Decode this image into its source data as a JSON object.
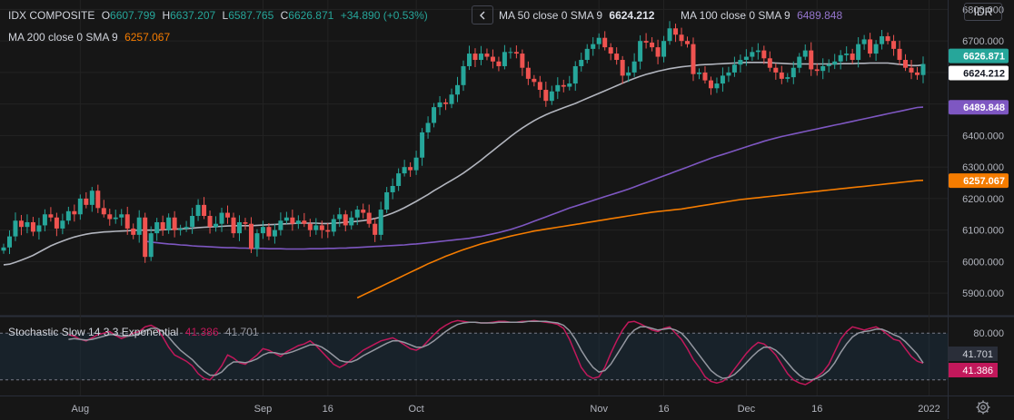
{
  "header": {
    "symbol": "IDX COMPOSITE",
    "o_label": "O",
    "o_value": "6607.799",
    "h_label": "H",
    "h_value": "6637.207",
    "l_label": "L",
    "l_value": "6587.765",
    "c_label": "C",
    "c_value": "6626.871",
    "change": "+34.890 (+0.53%)",
    "ma50_label": "MA 50 close 0 SMA 9",
    "ma50_value": "6624.212",
    "ma100_label": "MA 100 close 0 SMA 9",
    "ma100_value": "6489.848",
    "ma200_label": "MA 200 close 0 SMA 9",
    "ma200_value": "6257.067",
    "currency": "IDR",
    "collapse_icon": "chevron-left-icon"
  },
  "stoch_legend": {
    "label": "Stochastic Slow 14 3 3 Exponential",
    "k": "41.386",
    "d": "41.701"
  },
  "colors": {
    "up": "#26a69a",
    "down": "#ef5350",
    "ma50": "#b2b5be",
    "ma100": "#7e57c2",
    "ma200": "#f57c00",
    "stoch_k": "#c2185b",
    "stoch_d": "#9598a1",
    "band": "#1e3a4f"
  },
  "chart_data": [
    {
      "type": "candlestick",
      "title": "IDX COMPOSITE",
      "y_ticks": [
        "5900.000",
        "6000.000",
        "6100.000",
        "6200.000",
        "6300.000",
        "6400.000",
        "6500.000",
        "6600.000",
        "6700.000",
        "6800.000"
      ],
      "ylim": [
        5840,
        6830
      ],
      "x_ticks": [
        {
          "label": "Aug",
          "index": 13
        },
        {
          "label": "Sep",
          "index": 44
        },
        {
          "label": "16",
          "index": 55
        },
        {
          "label": "Oct",
          "index": 70
        },
        {
          "label": "Nov",
          "index": 101
        },
        {
          "label": "16",
          "index": 112
        },
        {
          "label": "Dec",
          "index": 126
        },
        {
          "label": "16",
          "index": 138
        },
        {
          "label": "2022",
          "index": 157
        }
      ],
      "price_labels": [
        {
          "value": "6626.871",
          "kind": "last"
        },
        {
          "value": "6624.212",
          "kind": "ma50"
        },
        {
          "value": "6489.848",
          "kind": "ma100"
        },
        {
          "value": "6257.067",
          "kind": "ma200"
        }
      ],
      "closes": [
        6045,
        6080,
        6130,
        6110,
        6125,
        6095,
        6115,
        6150,
        6140,
        6105,
        6130,
        6160,
        6150,
        6200,
        6180,
        6225,
        6170,
        6150,
        6135,
        6140,
        6150,
        6105,
        6085,
        6140,
        6015,
        6090,
        6125,
        6100,
        6140,
        6100,
        6105,
        6110,
        6145,
        6180,
        6145,
        6110,
        6120,
        6155,
        6140,
        6090,
        6125,
        6120,
        6040,
        6090,
        6110,
        6080,
        6100,
        6130,
        6140,
        6120,
        6130,
        6120,
        6100,
        6115,
        6100,
        6095,
        6135,
        6150,
        6115,
        6140,
        6165,
        6155,
        6120,
        6085,
        6165,
        6220,
        6240,
        6280,
        6300,
        6290,
        6330,
        6410,
        6440,
        6490,
        6505,
        6500,
        6530,
        6560,
        6620,
        6660,
        6640,
        6660,
        6650,
        6635,
        6620,
        6665,
        6665,
        6660,
        6615,
        6580,
        6570,
        6545,
        6510,
        6540,
        6560,
        6555,
        6565,
        6620,
        6640,
        6675,
        6690,
        6710,
        6680,
        6660,
        6640,
        6590,
        6600,
        6635,
        6700,
        6695,
        6680,
        6650,
        6700,
        6740,
        6720,
        6700,
        6690,
        6595,
        6600,
        6575,
        6550,
        6565,
        6590,
        6600,
        6625,
        6640,
        6650,
        6665,
        6670,
        6645,
        6615,
        6600,
        6580,
        6585,
        6615,
        6650,
        6670,
        6610,
        6605,
        6620,
        6625,
        6635,
        6655,
        6660,
        6640,
        6690,
        6705,
        6660,
        6690,
        6715,
        6700,
        6675,
        6640,
        6615,
        6600,
        6592,
        6627
      ],
      "ma50": [
        5990,
        5992,
        5998,
        6005,
        6012,
        6020,
        6030,
        6040,
        6050,
        6058,
        6065,
        6072,
        6078,
        6083,
        6087,
        6090,
        6092,
        6094,
        6095,
        6096,
        6097,
        6098,
        6099,
        6100,
        6100,
        6100,
        6100,
        6101,
        6102,
        6103,
        6104,
        6105,
        6106,
        6108,
        6109,
        6110,
        6111,
        6112,
        6113,
        6114,
        6114,
        6114,
        6114,
        6115,
        6116,
        6117,
        6118,
        6119,
        6120,
        6121,
        6122,
        6122,
        6122,
        6122,
        6121,
        6121,
        6122,
        6123,
        6125,
        6126,
        6128,
        6130,
        6133,
        6137,
        6141,
        6147,
        6154,
        6162,
        6171,
        6181,
        6191,
        6202,
        6213,
        6225,
        6236,
        6247,
        6258,
        6269,
        6281,
        6294,
        6308,
        6322,
        6337,
        6352,
        6367,
        6382,
        6397,
        6411,
        6424,
        6436,
        6447,
        6457,
        6466,
        6474,
        6481,
        6488,
        6495,
        6502,
        6510,
        6518,
        6526,
        6534,
        6542,
        6550,
        6558,
        6566,
        6574,
        6581,
        6588,
        6594,
        6599,
        6604,
        6608,
        6612,
        6615,
        6618,
        6620,
        6622,
        6624,
        6625,
        6626,
        6627,
        6628,
        6629,
        6630,
        6631,
        6632,
        6632,
        6632,
        6632,
        6631,
        6630,
        6629,
        6628,
        6627,
        6627,
        6627,
        6627,
        6627,
        6627,
        6627,
        6627,
        6628,
        6628,
        6628,
        6629,
        6629,
        6630,
        6630,
        6630,
        6630,
        6628,
        6626,
        6624,
        6622,
        6622,
        6624
      ],
      "ma100": [
        6065,
        6062,
        6060,
        6058,
        6056,
        6055,
        6053,
        6052,
        6050,
        6049,
        6048,
        6047,
        6046,
        6045,
        6044,
        6044,
        6043,
        6043,
        6042,
        6042,
        6042,
        6041,
        6041,
        6041,
        6040,
        6040,
        6040,
        6040,
        6041,
        6041,
        6041,
        6042,
        6042,
        6043,
        6043,
        6044,
        6045,
        6046,
        6047,
        6048,
        6049,
        6050,
        6051,
        6052,
        6053,
        6055,
        6056,
        6058,
        6060,
        6062,
        6064,
        6066,
        6068,
        6070,
        6072,
        6074,
        6077,
        6080,
        6084,
        6088,
        6092,
        6097,
        6102,
        6108,
        6114,
        6121,
        6128,
        6135,
        6142,
        6149,
        6156,
        6163,
        6170,
        6176,
        6182,
        6188,
        6194,
        6200,
        6206,
        6212,
        6218,
        6224,
        6230,
        6237,
        6244,
        6251,
        6258,
        6265,
        6272,
        6279,
        6286,
        6293,
        6300,
        6307,
        6314,
        6321,
        6328,
        6334,
        6340,
        6346,
        6352,
        6358,
        6364,
        6370,
        6376,
        6382,
        6387,
        6392,
        6397,
        6401,
        6405,
        6409,
        6413,
        6417,
        6421,
        6425,
        6429,
        6433,
        6437,
        6441,
        6445,
        6449,
        6453,
        6457,
        6461,
        6465,
        6469,
        6473,
        6477,
        6481,
        6485,
        6489,
        6490
      ],
      "ma200": [
        5885,
        5894,
        5903,
        5912,
        5921,
        5930,
        5939,
        5948,
        5957,
        5966,
        5975,
        5984,
        5993,
        6001,
        6009,
        6017,
        6024,
        6031,
        6038,
        6044,
        6050,
        6056,
        6061,
        6066,
        6071,
        6076,
        6081,
        6085,
        6089,
        6093,
        6097,
        6100,
        6103,
        6106,
        6109,
        6112,
        6115,
        6118,
        6121,
        6124,
        6127,
        6130,
        6133,
        6136,
        6139,
        6142,
        6145,
        6148,
        6151,
        6154,
        6157,
        6159,
        6161,
        6163,
        6165,
        6167,
        6170,
        6173,
        6176,
        6179,
        6182,
        6185,
        6188,
        6191,
        6194,
        6197,
        6199,
        6201,
        6203,
        6205,
        6207,
        6209,
        6211,
        6213,
        6215,
        6217,
        6219,
        6221,
        6223,
        6225,
        6227,
        6229,
        6231,
        6233,
        6235,
        6237,
        6239,
        6241,
        6243,
        6245,
        6247,
        6249,
        6251,
        6253,
        6255,
        6257,
        6258
      ],
      "last_close": 6626.871,
      "ma50_last": 6624.212,
      "ma100_last": 6489.848,
      "ma200_last": 6257.067
    },
    {
      "type": "line",
      "title": "Stochastic Slow 14 3 3 Exponential",
      "y_ticks": [
        "80.000"
      ],
      "ylim": [
        0,
        100
      ],
      "band": [
        20,
        80
      ],
      "series": [
        {
          "name": "K",
          "values": [
            78,
            76,
            72,
            70,
            74,
            78,
            80,
            82,
            77,
            73,
            76,
            80,
            82,
            88,
            90,
            86,
            75,
            62,
            52,
            48,
            44,
            38,
            28,
            22,
            20,
            28,
            38,
            52,
            48,
            42,
            40,
            46,
            52,
            60,
            58,
            54,
            50,
            56,
            60,
            64,
            66,
            70,
            64,
            56,
            48,
            40,
            36,
            40,
            46,
            52,
            58,
            62,
            66,
            70,
            72,
            74,
            70,
            65,
            60,
            58,
            62,
            70,
            78,
            85,
            90,
            94,
            96,
            95,
            94,
            94,
            93,
            93,
            94,
            95,
            95,
            94,
            94,
            95,
            95,
            96,
            95,
            94,
            93,
            91,
            86,
            72,
            54,
            36,
            26,
            22,
            24,
            36,
            54,
            70,
            84,
            94,
            95,
            92,
            88,
            84,
            82,
            86,
            88,
            80,
            72,
            60,
            46,
            36,
            24,
            18,
            16,
            18,
            24,
            34,
            44,
            54,
            62,
            68,
            66,
            60,
            52,
            40,
            28,
            20,
            16,
            14,
            18,
            24,
            30,
            40,
            56,
            72,
            82,
            88,
            86,
            84,
            86,
            88,
            84,
            78,
            72,
            70,
            60,
            50,
            44,
            41.386
          ]
        },
        {
          "name": "D",
          "values": [
            72,
            73,
            72,
            71,
            72,
            74,
            76,
            78,
            78,
            76,
            76,
            77,
            79,
            83,
            86,
            86,
            82,
            75,
            66,
            58,
            52,
            46,
            38,
            31,
            26,
            26,
            30,
            38,
            43,
            43,
            42,
            44,
            47,
            52,
            55,
            55,
            53,
            54,
            56,
            59,
            62,
            65,
            65,
            62,
            57,
            51,
            45,
            43,
            43,
            46,
            51,
            55,
            59,
            63,
            67,
            70,
            70,
            68,
            65,
            62,
            62,
            65,
            70,
            76,
            82,
            87,
            91,
            93,
            94,
            94,
            93,
            93,
            93,
            94,
            94,
            94,
            94,
            94,
            95,
            95,
            95,
            95,
            94,
            93,
            90,
            83,
            72,
            58,
            46,
            36,
            30,
            32,
            40,
            52,
            64,
            76,
            84,
            88,
            88,
            86,
            84,
            85,
            86,
            84,
            80,
            72,
            62,
            52,
            42,
            32,
            26,
            22,
            23,
            27,
            34,
            42,
            50,
            57,
            62,
            62,
            58,
            51,
            42,
            33,
            26,
            21,
            20,
            22,
            26,
            32,
            42,
            55,
            66,
            75,
            80,
            82,
            83,
            85,
            85,
            82,
            78,
            75,
            69,
            61,
            53,
            41.701
          ]
        }
      ]
    }
  ]
}
